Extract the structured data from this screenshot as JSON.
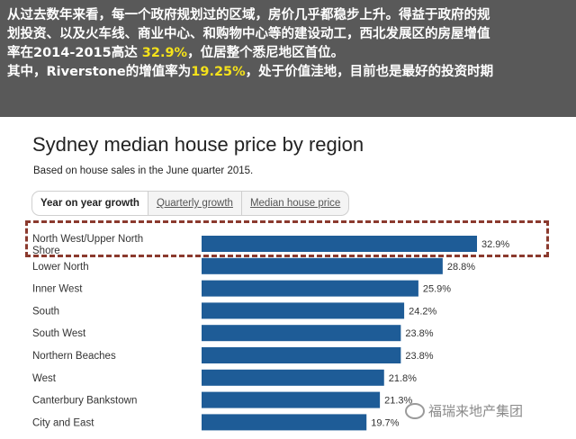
{
  "banner": {
    "line1": "从过去数年来看，每一个政府规划过的区域，房价几乎都稳步上升。得益于政府的规",
    "line2": "划投资、以及火车线、商业中心、和购物中心等的建设动工，西北发展区的房屋增值",
    "line3_pre": "率在2014-2015高达 ",
    "line3_hl": "32.9%",
    "line3_post": "，位居整个悉尼地区首位。",
    "line4_pre": "其中，Riverstone的增值率为",
    "line4_hl": "19.25%",
    "line4_post": "，处于价值洼地，目前也是最好的投资时期"
  },
  "tabs": {
    "yoy": "Year on year growth",
    "quarterly": "Quarterly growth",
    "median": "Median house price"
  },
  "watermark": "福瑞来地产集团",
  "colors": {
    "bar": "#1e5c97",
    "highlight_border": "#8b3a2e",
    "banner_bg": "#595959",
    "banner_highlight": "#f5e21a"
  },
  "chart_data": {
    "type": "bar",
    "orientation": "horizontal",
    "title": "Sydney median house price by region",
    "subtitle": "Based on house sales in the June quarter 2015.",
    "categories": [
      "North West/Upper North Shore",
      "Lower North",
      "Inner West",
      "South",
      "South West",
      "Northern Beaches",
      "West",
      "Canterbury Bankstown",
      "City and East"
    ],
    "values": [
      32.9,
      28.8,
      25.9,
      24.2,
      23.8,
      23.8,
      21.8,
      21.3,
      19.7
    ],
    "value_labels": [
      "32.9%",
      "28.8%",
      "25.9%",
      "24.2%",
      "23.8%",
      "23.8%",
      "21.8%",
      "21.3%",
      "19.7%"
    ],
    "xlabel": "",
    "ylabel": "",
    "highlighted_category": "North West/Upper North Shore"
  }
}
